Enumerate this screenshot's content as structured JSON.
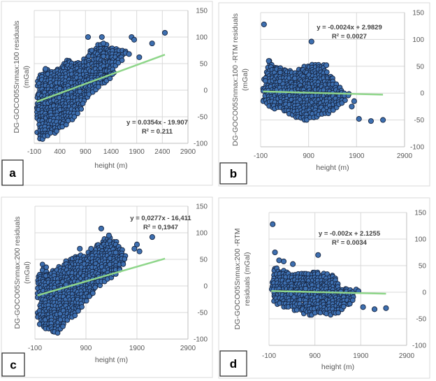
{
  "chart_data": [
    {
      "type": "scatter",
      "panel_label": "a",
      "xlabel": "height (m)",
      "ylabel_lines": [
        "DG-GOCO05Snmax:100 residuals",
        "(mGal)"
      ],
      "xlim": [
        -100,
        2900
      ],
      "ylim": [
        -100,
        150
      ],
      "xticks": [
        -100,
        400,
        900,
        1400,
        1900,
        2400,
        2900
      ],
      "yticks": [
        -100,
        -50,
        0,
        50,
        100,
        150
      ],
      "grid": true,
      "y_axis_side": "right",
      "trendline": {
        "slope": 0.0354,
        "intercept": -19.907,
        "x_range": [
          -50,
          2450
        ],
        "equation": "y = 0.0354x - 19.907",
        "r2": "R² = 0.211"
      },
      "cloud_envelope": [
        [
          -50,
          20
        ],
        [
          100,
          42
        ],
        [
          300,
          35
        ],
        [
          400,
          45
        ],
        [
          500,
          60
        ],
        [
          700,
          50
        ],
        [
          900,
          62
        ],
        [
          1000,
          75
        ],
        [
          1200,
          90
        ],
        [
          1400,
          85
        ],
        [
          1600,
          75
        ],
        [
          1700,
          80
        ],
        [
          1700,
          68
        ],
        [
          1500,
          40
        ],
        [
          1400,
          20
        ],
        [
          1200,
          10
        ],
        [
          1000,
          -10
        ],
        [
          800,
          -40
        ],
        [
          600,
          -60
        ],
        [
          400,
          -75
        ],
        [
          200,
          -90
        ],
        [
          -50,
          -95
        ]
      ],
      "points": [
        [
          950,
          100
        ],
        [
          1220,
          100
        ],
        [
          1800,
          100
        ],
        [
          1850,
          95
        ],
        [
          1950,
          62
        ],
        [
          2200,
          88
        ],
        [
          2450,
          108
        ],
        [
          1750,
          68
        ],
        [
          1250,
          88
        ],
        [
          120,
          40
        ]
      ],
      "colors": {
        "marker_fill": "#3d6fb0",
        "marker_edge": "#16243f",
        "trendline": "#8fd68a"
      }
    },
    {
      "type": "scatter",
      "panel_label": "b",
      "xlabel": "height (m)",
      "ylabel_lines": [
        "DG-GOCO05Snmax:100 -RTM residuals",
        "(mGal)"
      ],
      "xlim": [
        -100,
        2900
      ],
      "ylim": [
        -100,
        150
      ],
      "xticks": [
        -100,
        900,
        1900,
        2900
      ],
      "yticks": [
        -100,
        -50,
        0,
        50,
        100,
        150
      ],
      "grid": true,
      "y_axis_side": "right",
      "trendline": {
        "slope": -0.0024,
        "intercept": 2.9829,
        "x_range": [
          -50,
          2450
        ],
        "equation": "y = -0.0024x + 2.9829",
        "r2": "R² = 0.0027"
      },
      "cloud_envelope": [
        [
          -50,
          20
        ],
        [
          50,
          65
        ],
        [
          200,
          50
        ],
        [
          400,
          45
        ],
        [
          600,
          42
        ],
        [
          800,
          50
        ],
        [
          950,
          55
        ],
        [
          1200,
          55
        ],
        [
          1400,
          30
        ],
        [
          1600,
          5
        ],
        [
          1750,
          0
        ],
        [
          1750,
          -10
        ],
        [
          1500,
          -30
        ],
        [
          1300,
          -40
        ],
        [
          1000,
          -48
        ],
        [
          800,
          -52
        ],
        [
          600,
          -45
        ],
        [
          400,
          -35
        ],
        [
          200,
          -30
        ],
        [
          -50,
          -20
        ]
      ],
      "points": [
        [
          -30,
          128
        ],
        [
          960,
          96
        ],
        [
          1800,
          -25
        ],
        [
          1850,
          -15
        ],
        [
          1950,
          -48
        ],
        [
          2200,
          -52
        ],
        [
          2450,
          -50
        ],
        [
          1270,
          52
        ],
        [
          70,
          60
        ]
      ],
      "colors": {
        "marker_fill": "#3d6fb0",
        "marker_edge": "#16243f",
        "trendline": "#8fd68a"
      }
    },
    {
      "type": "scatter",
      "panel_label": "c",
      "xlabel": "height (m)",
      "ylabel_lines": [
        "DG-GOCO05Snmax:200  residuals",
        "(mGal)"
      ],
      "xlim": [
        -100,
        2900
      ],
      "ylim": [
        -100,
        150
      ],
      "xticks": [
        -100,
        900,
        1900,
        2900
      ],
      "yticks": [
        -100,
        -50,
        0,
        50,
        100,
        150
      ],
      "grid": true,
      "y_axis_side": "right",
      "trendline": {
        "slope": 0.0277,
        "intercept": -16.411,
        "x_range": [
          -50,
          2450
        ],
        "equation": "y = 0,0277x - 16,411",
        "r2": "R² = 0,1947"
      },
      "cloud_envelope": [
        [
          -50,
          15
        ],
        [
          50,
          45
        ],
        [
          200,
          25
        ],
        [
          400,
          40
        ],
        [
          600,
          55
        ],
        [
          900,
          60
        ],
        [
          1100,
          75
        ],
        [
          1300,
          95
        ],
        [
          1500,
          85
        ],
        [
          1700,
          60
        ],
        [
          1700,
          50
        ],
        [
          1500,
          20
        ],
        [
          1300,
          10
        ],
        [
          1100,
          -10
        ],
        [
          900,
          -30
        ],
        [
          700,
          -55
        ],
        [
          500,
          -70
        ],
        [
          350,
          -90
        ],
        [
          200,
          -85
        ],
        [
          -50,
          -75
        ]
      ],
      "points": [
        [
          1200,
          108
        ],
        [
          780,
          70
        ],
        [
          1000,
          70
        ],
        [
          1900,
          78
        ],
        [
          1950,
          65
        ],
        [
          2200,
          92
        ],
        [
          1850,
          70
        ],
        [
          1350,
          95
        ]
      ],
      "colors": {
        "marker_fill": "#3d6fb0",
        "marker_edge": "#16243f",
        "trendline": "#8fd68a"
      }
    },
    {
      "type": "scatter",
      "panel_label": "d",
      "xlabel": "height (m)",
      "ylabel_lines": [
        "DG-GOCO05Snmax:200  -RTM",
        "residuals (mGal)"
      ],
      "xlim": [
        -100,
        2900
      ],
      "ylim": [
        -100,
        150
      ],
      "xticks": [
        -100,
        900,
        1900,
        2900
      ],
      "yticks": [
        -100,
        -50,
        0,
        50,
        100,
        150
      ],
      "grid": true,
      "y_axis_side": "right",
      "trendline": {
        "slope": -0.002,
        "intercept": 2.1255,
        "x_range": [
          -50,
          2450
        ],
        "equation": "y = -0.002x + 2.1255",
        "r2": "R² = 0.0034"
      },
      "cloud_envelope": [
        [
          -50,
          20
        ],
        [
          0,
          50
        ],
        [
          100,
          45
        ],
        [
          300,
          40
        ],
        [
          500,
          38
        ],
        [
          800,
          38
        ],
        [
          1000,
          38
        ],
        [
          1300,
          33
        ],
        [
          1500,
          10
        ],
        [
          1750,
          5
        ],
        [
          1750,
          -15
        ],
        [
          1400,
          -45
        ],
        [
          1000,
          -40
        ],
        [
          800,
          -45
        ],
        [
          500,
          -35
        ],
        [
          200,
          -30
        ],
        [
          -50,
          -15
        ]
      ],
      "points": [
        [
          -20,
          128
        ],
        [
          30,
          75
        ],
        [
          120,
          60
        ],
        [
          220,
          58
        ],
        [
          420,
          53
        ],
        [
          970,
          70
        ],
        [
          1950,
          -28
        ],
        [
          2200,
          -32
        ],
        [
          2450,
          -30
        ],
        [
          1800,
          5
        ],
        [
          1850,
          2
        ]
      ],
      "colors": {
        "marker_fill": "#3d6fb0",
        "marker_edge": "#16243f",
        "trendline": "#8fd68a"
      }
    }
  ]
}
